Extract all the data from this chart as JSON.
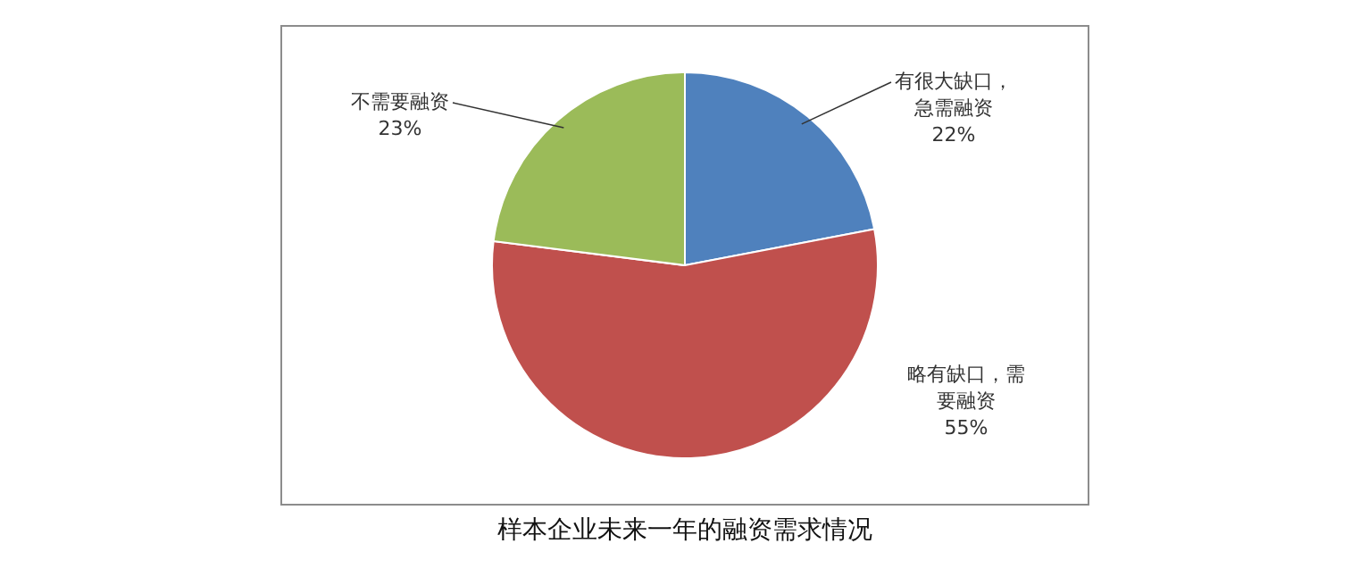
{
  "chart_data": {
    "type": "pie",
    "title": "样本企业未来一年的融资需求情况",
    "categories": [
      "有很大缺口，急需融资",
      "略有缺口，需要融资",
      "不需要融资"
    ],
    "values": [
      22,
      55,
      23
    ],
    "colors": [
      "#4f81bd",
      "#c0504d",
      "#9bbb59"
    ],
    "value_labels": [
      "22%",
      "55%",
      "23%"
    ]
  }
}
